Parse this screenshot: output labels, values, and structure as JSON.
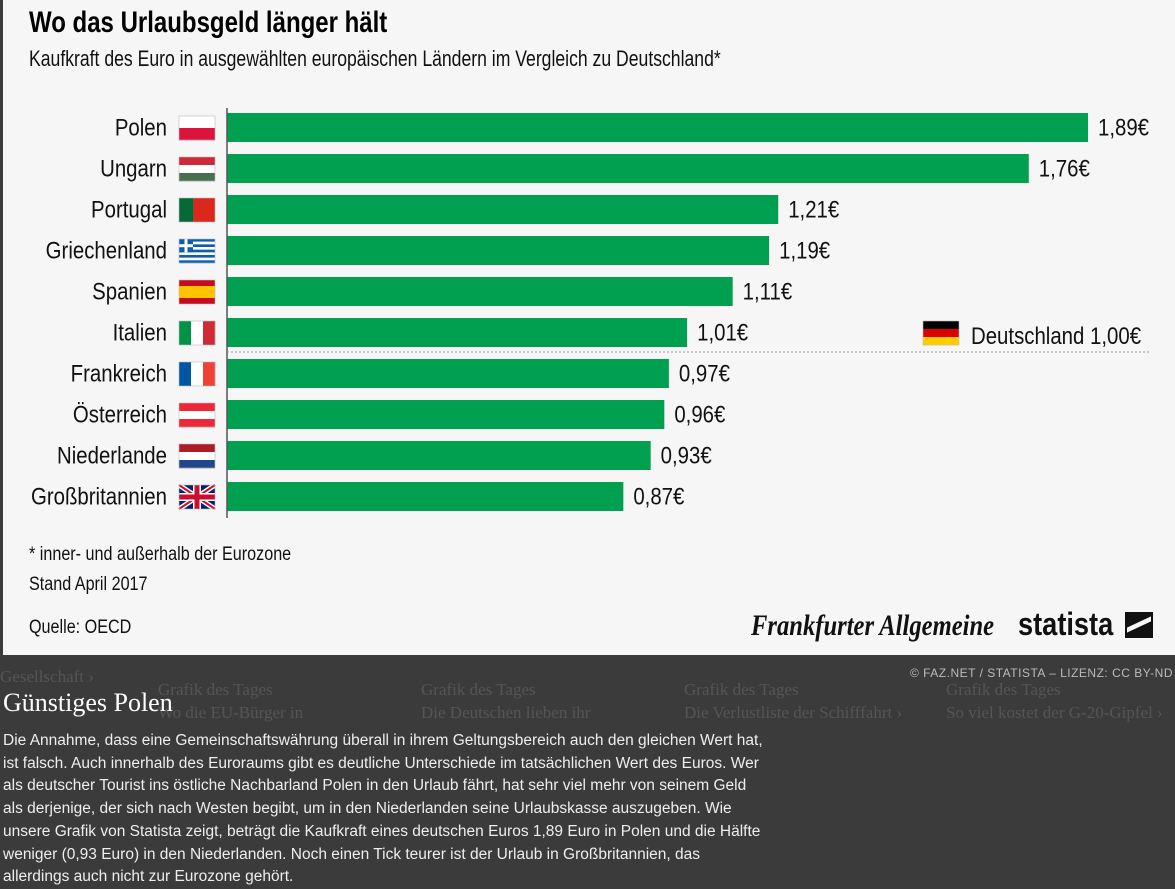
{
  "chart_data": {
    "type": "bar",
    "orientation": "horizontal",
    "title": "Wo das Urlaubsgeld länger hält",
    "subtitle": "Kaufkraft des Euro in ausgewählten europäischen Ländern im Vergleich zu Deutschland*",
    "categories": [
      "Polen",
      "Ungarn",
      "Portugal",
      "Griechenland",
      "Spanien",
      "Italien",
      "Frankreich",
      "Österreich",
      "Niederlande",
      "Großbritannien"
    ],
    "values": [
      1.89,
      1.76,
      1.21,
      1.19,
      1.11,
      1.01,
      0.97,
      0.96,
      0.93,
      0.87
    ],
    "value_labels": [
      "1,89€",
      "1,76€",
      "1,21€",
      "1,19€",
      "1,11€",
      "1,01€",
      "0,97€",
      "0,96€",
      "0,93€",
      "0,87€"
    ],
    "reference": {
      "label": "Deutschland",
      "value": 1.0,
      "value_label": "1,00€"
    },
    "bar_color": "#00a050",
    "xlim": [
      0,
      1.89
    ],
    "grid": false
  },
  "notes": [
    "* inner- und außerhalb der Eurozone",
    "Stand April 2017"
  ],
  "source": "Quelle: OECD",
  "logos": {
    "faz": "Frankfurter Allgemeine",
    "statista": "statista"
  },
  "license": "© FAZ.NET / STATISTA – LIZENZ: CC BY-ND",
  "article": {
    "title": "Günstiges Polen",
    "body": "Die Annahme, dass eine Gemeinschaftswährung überall in ihrem Geltungsbereich auch den gleichen Wert hat, ist falsch. Auch innerhalb des Euroraums gibt es deutliche Unterschiede im tatsächlichen Wert des Euros. Wer als deutscher Tourist ins östliche Nachbarland Polen in den Urlaub fährt, hat sehr viel mehr von seinem Geld als derjenige, der sich nach Westen begibt, um in den Niederlanden seine Urlaubskasse auszugeben. Wie unsere Grafik von Statista zeigt, beträgt die Kaufkraft eines deutschen Euros 1,89 Euro in Polen und die Hälfte weniger (0,93 Euro) in den Niederlanden. Noch einen Tick teurer ist der Urlaub in Großbritannien, das allerdings auch nicht zur Eurozone gehört."
  },
  "background": {
    "nav": "Gesellschaft ›",
    "cards": [
      {
        "kicker": "Grafik des Tages",
        "title": "Wo die EU-Bürger in"
      },
      {
        "kicker": "Grafik des Tages",
        "title": "Die Deutschen lieben ihr"
      },
      {
        "kicker": "Grafik des Tages",
        "title": "Die Verlustliste der Schifffahrt ›"
      },
      {
        "kicker": "Grafik des Tages",
        "title": "So viel kostet der G-20-Gipfel ›"
      }
    ]
  }
}
